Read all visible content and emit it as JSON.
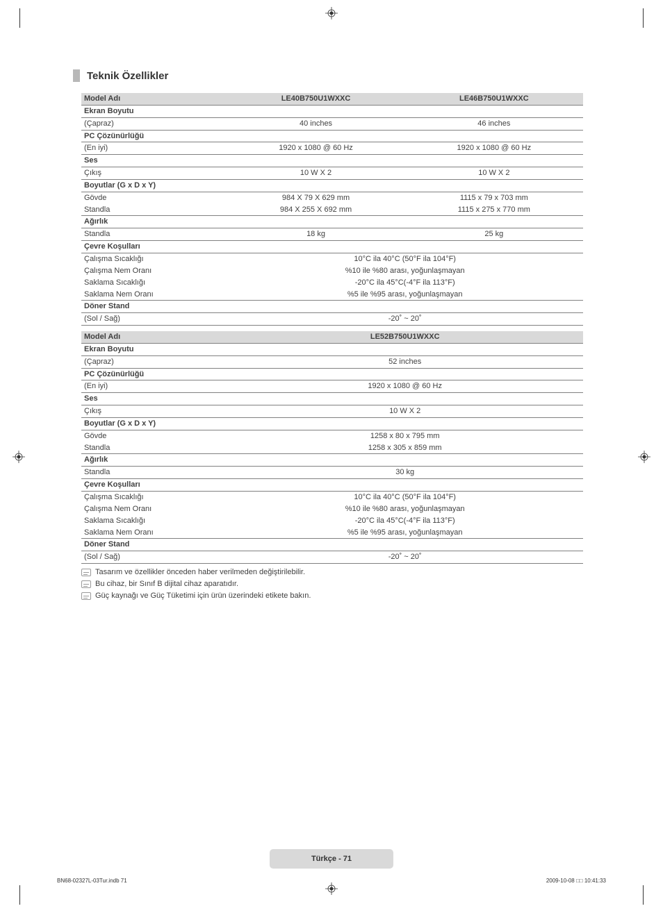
{
  "title": "Teknik Özellikler",
  "table1": {
    "headers": {
      "c0": "Model Adı",
      "c1": "LE40B750U1WXXC",
      "c2": "LE46B750U1WXXC"
    },
    "rows": [
      {
        "t": "h",
        "c0": "Ekran Boyutu"
      },
      {
        "t": "r3",
        "c0": "(Çapraz)",
        "c1": "40 inches",
        "c2": "46 inches"
      },
      {
        "t": "h",
        "c0": "PC Çözünürlüğü"
      },
      {
        "t": "r3",
        "c0": "(En iyi)",
        "c1": "1920 x 1080 @ 60 Hz",
        "c2": "1920 x 1080 @ 60 Hz"
      },
      {
        "t": "h",
        "c0": "Ses"
      },
      {
        "t": "r3",
        "c0": "Çıkış",
        "c1": "10 W X 2",
        "c2": "10 W X 2"
      },
      {
        "t": "h",
        "c0": "Boyutlar (G x D x Y)"
      },
      {
        "t": "r3nb",
        "c0": "Gövde",
        "c1": "984 X 79 X 629 mm",
        "c2": "1115 x 79 x 703 mm"
      },
      {
        "t": "r3",
        "c0": "Standla",
        "c1": "984 X 255 X 692 mm",
        "c2": "1115 x 275 x 770 mm"
      },
      {
        "t": "h",
        "c0": "Ağırlık"
      },
      {
        "t": "r3",
        "c0": "Standla",
        "c1": "18 kg",
        "c2": "25 kg"
      },
      {
        "t": "h",
        "c0": "Çevre Koşulları"
      },
      {
        "t": "r2nb",
        "c0": "Çalışma Sıcaklığı",
        "c1": "10°C ila 40°C (50°F ila 104°F)"
      },
      {
        "t": "r2nb",
        "c0": "Çalışma Nem Oranı",
        "c1": "%10 ile %80 arası, yoğunlaşmayan"
      },
      {
        "t": "r2nb",
        "c0": "Saklama Sıcaklığı",
        "c1": "-20°C ila 45°C(-4°F ila 113°F)"
      },
      {
        "t": "r2",
        "c0": "Saklama Nem Oranı",
        "c1": "%5 ile %95 arası, yoğunlaşmayan"
      },
      {
        "t": "h",
        "c0": "Döner Stand"
      },
      {
        "t": "r2",
        "c0": "(Sol / Sağ)",
        "c1": "-20˚ ~ 20˚"
      }
    ]
  },
  "table2": {
    "headers": {
      "c0": "Model Adı",
      "c1": "LE52B750U1WXXC"
    },
    "rows": [
      {
        "t": "h",
        "c0": "Ekran Boyutu"
      },
      {
        "t": "r2",
        "c0": "(Çapraz)",
        "c1": "52 inches"
      },
      {
        "t": "h",
        "c0": "PC Çözünürlüğü"
      },
      {
        "t": "r2",
        "c0": "(En iyi)",
        "c1": "1920 x 1080 @ 60 Hz"
      },
      {
        "t": "h",
        "c0": "Ses"
      },
      {
        "t": "r2",
        "c0": "Çıkış",
        "c1": "10 W X 2"
      },
      {
        "t": "h",
        "c0": "Boyutlar (G x D x Y)"
      },
      {
        "t": "r2nb",
        "c0": "Gövde",
        "c1": "1258 x 80 x 795 mm"
      },
      {
        "t": "r2",
        "c0": "Standla",
        "c1": "1258 x 305 x 859 mm"
      },
      {
        "t": "h",
        "c0": "Ağırlık"
      },
      {
        "t": "r2",
        "c0": "Standla",
        "c1": "30 kg"
      },
      {
        "t": "h",
        "c0": "Çevre Koşulları"
      },
      {
        "t": "r2nb",
        "c0": "Çalışma Sıcaklığı",
        "c1": "10°C ila 40°C (50°F ila 104°F)"
      },
      {
        "t": "r2nb",
        "c0": "Çalışma Nem Oranı",
        "c1": "%10 ile %80 arası, yoğunlaşmayan"
      },
      {
        "t": "r2nb",
        "c0": "Saklama Sıcaklığı",
        "c1": "-20°C ila 45°C(-4°F ila 113°F)"
      },
      {
        "t": "r2",
        "c0": "Saklama Nem Oranı",
        "c1": "%5 ile %95 arası, yoğunlaşmayan"
      },
      {
        "t": "h",
        "c0": "Döner Stand"
      },
      {
        "t": "r2",
        "c0": "(Sol / Sağ)",
        "c1": "-20˚ ~ 20˚"
      }
    ]
  },
  "notes": [
    "Tasarım ve özellikler önceden haber verilmeden değiştirilebilir.",
    "Bu cihaz, bir Sınıf B dijital cihaz aparatıdır.",
    "Güç kaynağı ve Güç Tüketimi için ürün üzerindeki etikete bakın."
  ],
  "footer": {
    "badge": "Türkçe - 71",
    "left": "BN68-02327L-03Tur.indb   71",
    "right": "2009-10-08   □□ 10:41:33"
  }
}
